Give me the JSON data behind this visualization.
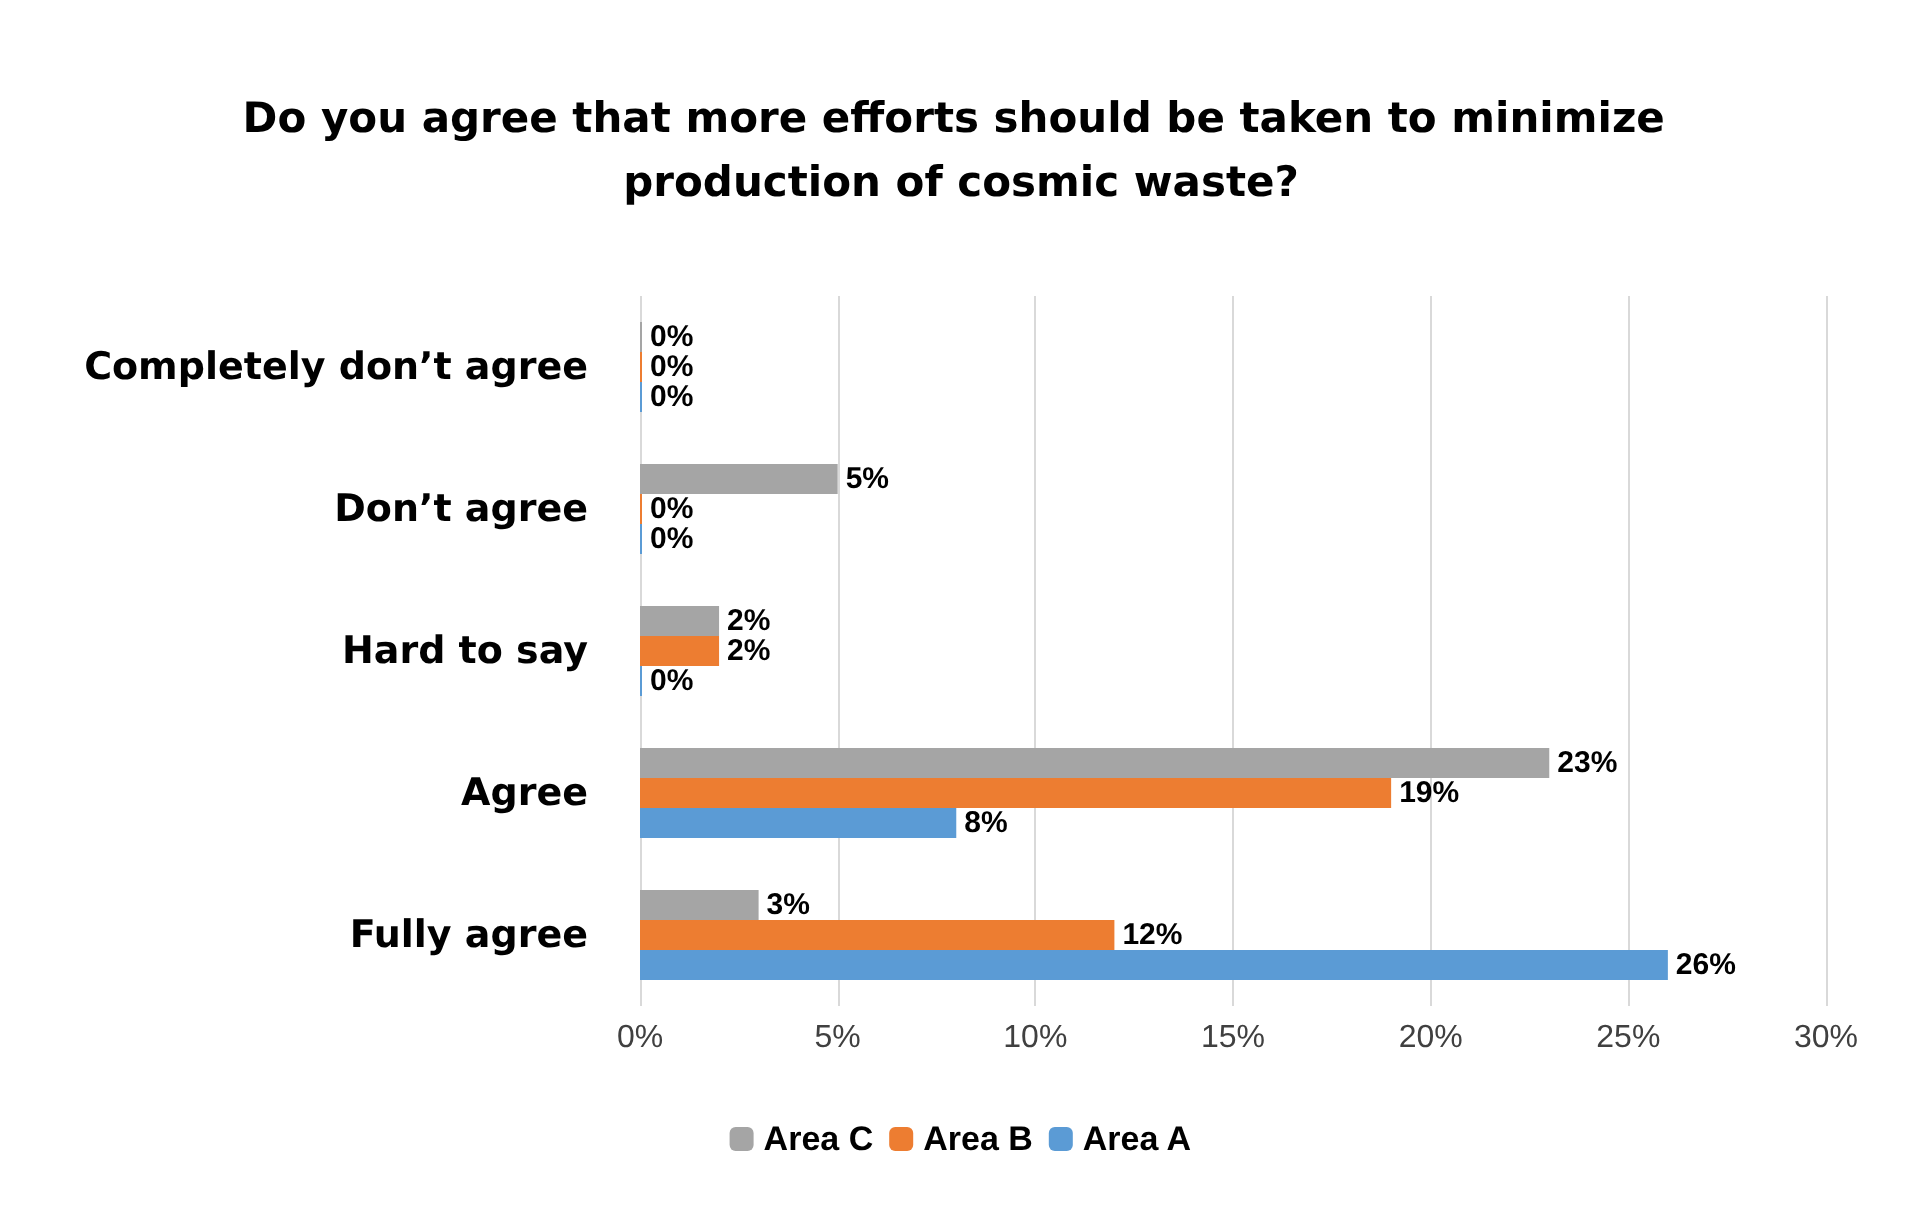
{
  "chart_data": {
    "type": "bar",
    "orientation": "horizontal",
    "title": "Do you agree that more efforts should be taken to minimize production of cosmic waste?",
    "categories": [
      "Completely don’t agree",
      "Don’t agree",
      "Hard to say",
      "Agree",
      "Fully agree"
    ],
    "series": [
      {
        "name": "Area C",
        "color": "#a5a5a5",
        "values": [
          0,
          5,
          2,
          23,
          3
        ],
        "value_labels": [
          "0%",
          "5%",
          "2%",
          "23%",
          "3%"
        ]
      },
      {
        "name": "Area B",
        "color": "#ed7d31",
        "values": [
          0,
          0,
          2,
          19,
          12
        ],
        "value_labels": [
          "0%",
          "0%",
          "2%",
          "19%",
          "12%"
        ]
      },
      {
        "name": "Area A",
        "color": "#5b9bd5",
        "values": [
          0,
          0,
          0,
          8,
          26
        ],
        "value_labels": [
          "0%",
          "0%",
          "0%",
          "8%",
          "26%"
        ]
      }
    ],
    "xlim": [
      0,
      30
    ],
    "xticks": [
      {
        "value": 0,
        "label": "0%"
      },
      {
        "value": 5,
        "label": "5%"
      },
      {
        "value": 10,
        "label": "10%"
      },
      {
        "value": 15,
        "label": "15%"
      },
      {
        "value": 20,
        "label": "20%"
      },
      {
        "value": 25,
        "label": "25%"
      },
      {
        "value": 30,
        "label": "30%"
      }
    ],
    "grid": "x",
    "legend": "bottom"
  }
}
